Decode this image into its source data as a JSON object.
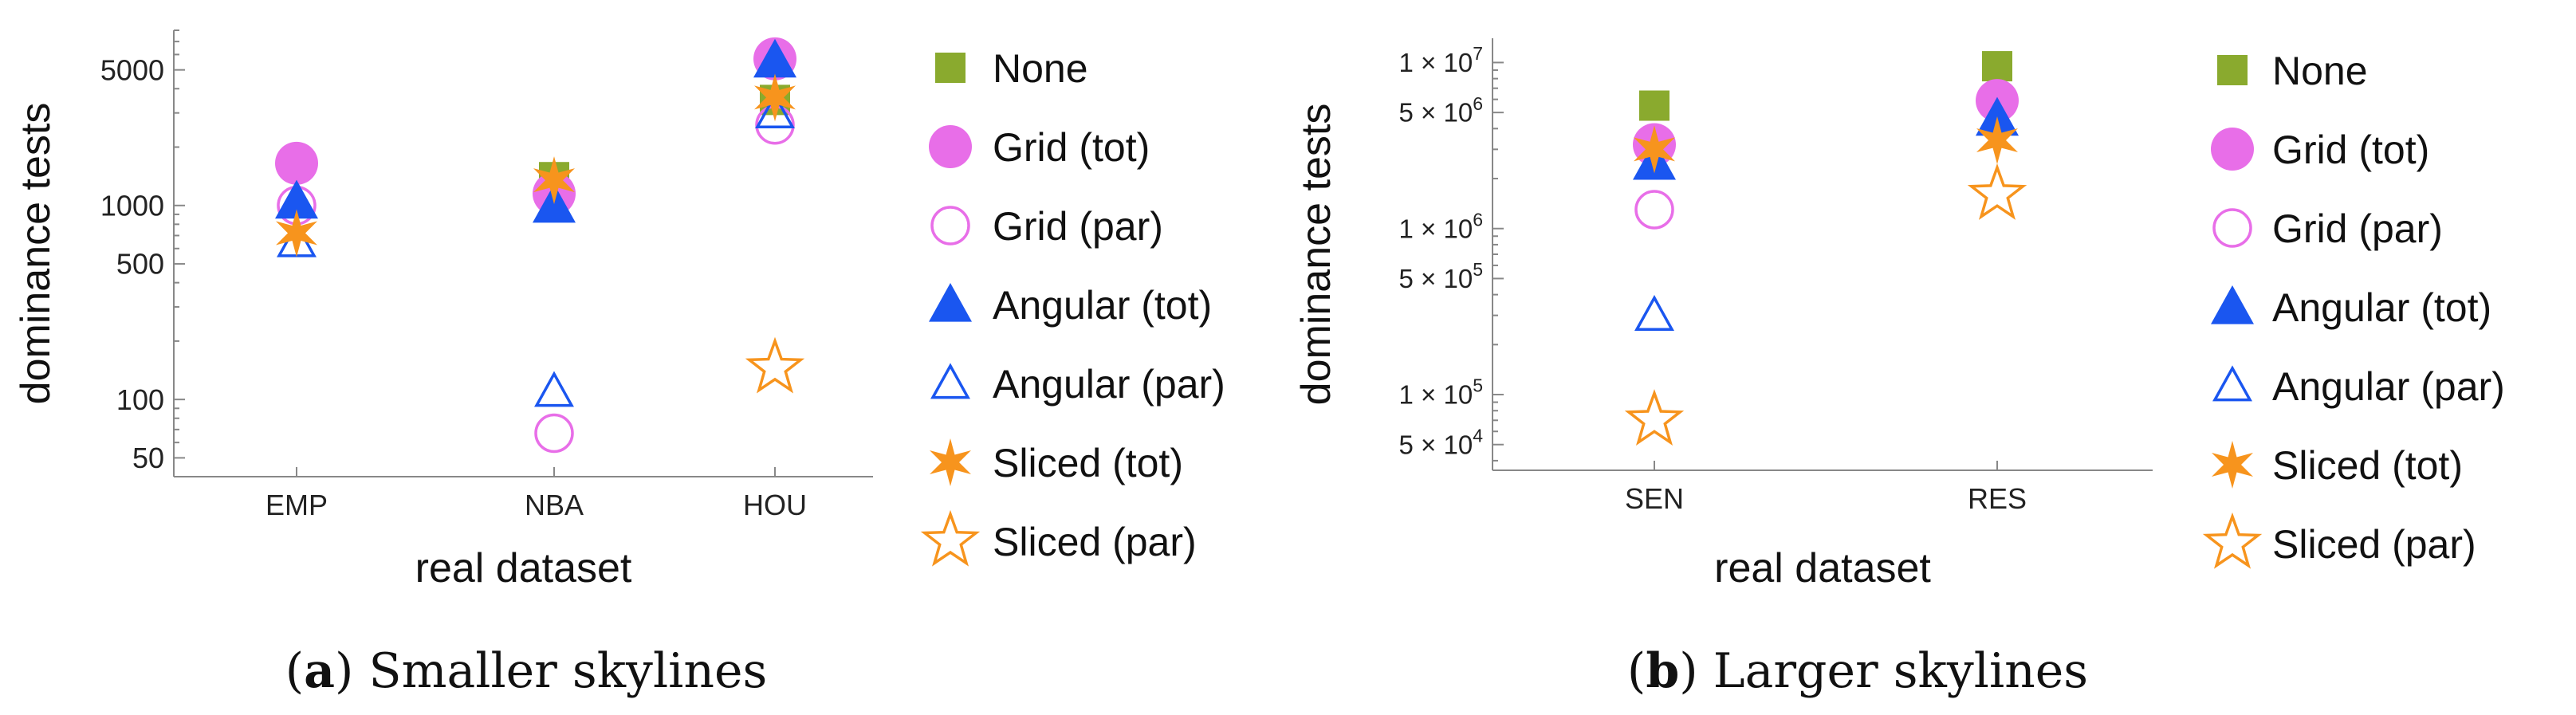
{
  "chart_data": [
    {
      "id": "a",
      "type": "scatter",
      "y_scale": "log",
      "caption_letter": "a",
      "caption_rest": " Smaller skylines",
      "xlabel": "real dataset",
      "ylabel": "dominance tests",
      "categories": [
        "EMP",
        "NBA",
        "HOU"
      ],
      "ylim": [
        40,
        8000
      ],
      "yticks": [
        {
          "value": 50,
          "label": "50"
        },
        {
          "value": 100,
          "label": "100"
        },
        {
          "value": 500,
          "label": "500"
        },
        {
          "value": 1000,
          "label": "1000"
        },
        {
          "value": 5000,
          "label": "5000"
        }
      ],
      "series": [
        {
          "name": "None",
          "marker": "square-filled",
          "color": "#8aaa2e",
          "values": [
            null,
            1400,
            3500
          ]
        },
        {
          "name": "Grid (tot)",
          "marker": "circle-filled",
          "color": "#e86ee8",
          "values": [
            1650,
            1150,
            5700
          ]
        },
        {
          "name": "Grid (par)",
          "marker": "circle-open",
          "color": "#e86ee8",
          "values": [
            1000,
            67,
            2600
          ]
        },
        {
          "name": "Angular (tot)",
          "marker": "triangle-filled",
          "color": "#1a56f0",
          "values": [
            1050,
            1000,
            5600
          ]
        },
        {
          "name": "Angular (par)",
          "marker": "triangle-open",
          "color": "#1a56f0",
          "values": [
            650,
            110,
            3000
          ]
        },
        {
          "name": "Sliced (tot)",
          "marker": "star6-filled",
          "color": "#f7941d",
          "values": [
            720,
            1350,
            3600
          ]
        },
        {
          "name": "Sliced (par)",
          "marker": "star5-open",
          "color": "#f7941d",
          "values": [
            null,
            null,
            145
          ]
        }
      ]
    },
    {
      "id": "b",
      "type": "scatter",
      "y_scale": "log",
      "caption_letter": "b",
      "caption_rest": " Larger skylines",
      "xlabel": "real dataset",
      "ylabel": "dominance tests",
      "categories": [
        "SEN",
        "RES"
      ],
      "ylim": [
        35000,
        14000000
      ],
      "yticks": [
        {
          "value": 50000,
          "label": "5 × 10",
          "exp": "4"
        },
        {
          "value": 100000,
          "label": "1 × 10",
          "exp": "5"
        },
        {
          "value": 500000,
          "label": "5 × 10",
          "exp": "5"
        },
        {
          "value": 1000000,
          "label": "1 × 10",
          "exp": "6"
        },
        {
          "value": 5000000,
          "label": "5 × 10",
          "exp": "6"
        },
        {
          "value": 10000000,
          "label": "1 × 10",
          "exp": "7"
        }
      ],
      "series": [
        {
          "name": "None",
          "marker": "square-filled",
          "color": "#8aaa2e",
          "values": [
            5500000,
            9500000
          ]
        },
        {
          "name": "Grid (tot)",
          "marker": "circle-filled",
          "color": "#e86ee8",
          "values": [
            3200000,
            5900000
          ]
        },
        {
          "name": "Grid (par)",
          "marker": "circle-open",
          "color": "#e86ee8",
          "values": [
            1300000,
            null
          ]
        },
        {
          "name": "Angular (tot)",
          "marker": "triangle-filled",
          "color": "#1a56f0",
          "values": [
            2500000,
            4600000
          ]
        },
        {
          "name": "Angular (par)",
          "marker": "triangle-open",
          "color": "#1a56f0",
          "values": [
            300000,
            null
          ]
        },
        {
          "name": "Sliced (tot)",
          "marker": "star6-filled",
          "color": "#f7941d",
          "values": [
            3000000,
            3400000
          ]
        },
        {
          "name": "Sliced (par)",
          "marker": "star5-open",
          "color": "#f7941d",
          "values": [
            70000,
            1600000
          ]
        }
      ]
    }
  ]
}
